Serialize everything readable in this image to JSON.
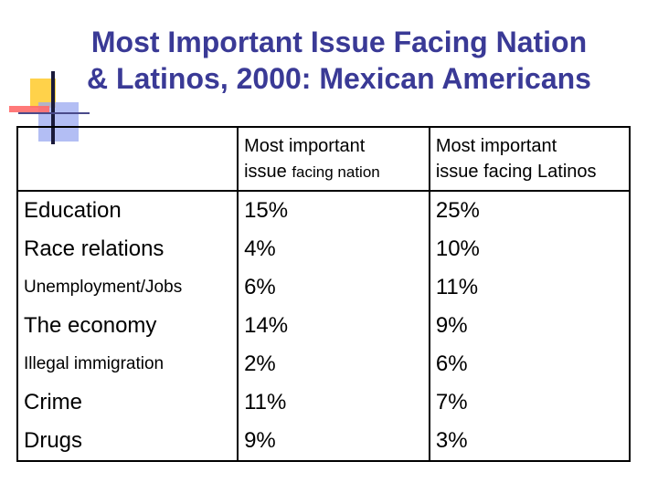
{
  "title": {
    "line1": "Most Important Issue Facing Nation",
    "line2": "& Latinos, 2000: Mexican Americans"
  },
  "table": {
    "headers": {
      "col1": "",
      "col2_part1": "Most important",
      "col2_part2": "issue",
      "col2_part3": "facing nation",
      "col3_line1": "Most important",
      "col3_line2": "issue facing Latinos"
    },
    "rows": [
      {
        "issue": "Education",
        "nation": "15%",
        "latinos": "25%"
      },
      {
        "issue": "Race relations",
        "nation": "4%",
        "latinos": "10%"
      },
      {
        "issue": "Unemployment/Jobs",
        "nation": "6%",
        "latinos": "11%"
      },
      {
        "issue": "The economy",
        "nation": "14%",
        "latinos": "9%"
      },
      {
        "issue": "Illegal immigration",
        "nation": "2%",
        "latinos": "6%"
      },
      {
        "issue": "Crime",
        "nation": "11%",
        "latinos": "7%"
      },
      {
        "issue": "Drugs",
        "nation": "9%",
        "latinos": "3%"
      }
    ]
  }
}
